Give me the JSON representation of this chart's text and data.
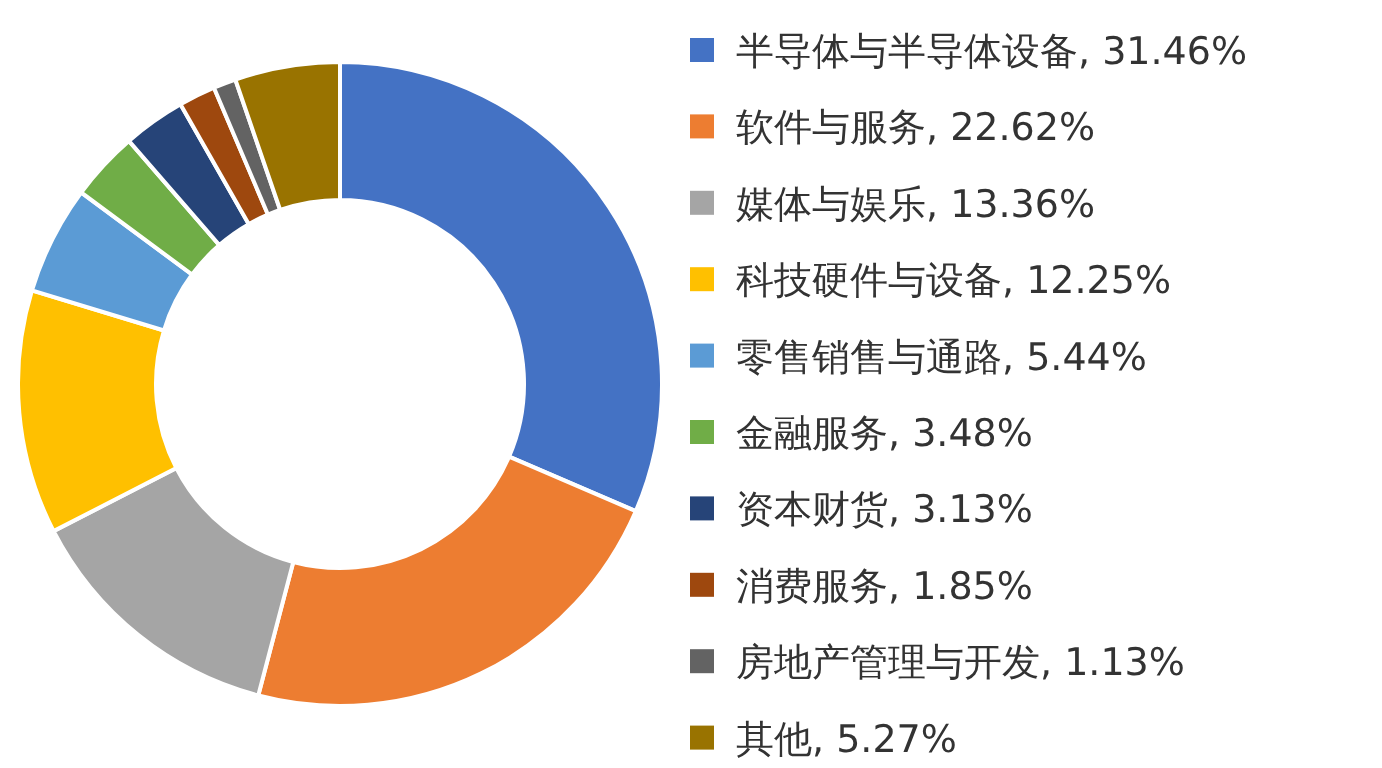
{
  "chart_data": {
    "type": "donut",
    "categories": [
      "半导体与半导体设备",
      "软件与服务",
      "媒体与娱乐",
      "科技硬件与设备",
      "零售销售与通路",
      "金融服务",
      "资本财货",
      "消费服务",
      "房地产管理与开发",
      "其他"
    ],
    "values": [
      31.46,
      22.62,
      13.36,
      12.25,
      5.44,
      3.48,
      3.13,
      1.85,
      1.13,
      5.27
    ],
    "value_labels": [
      "31.46%",
      "22.62%",
      "13.36%",
      "12.25%",
      "5.44%",
      "3.48%",
      "3.13%",
      "1.85%",
      "1.13%",
      "5.27%"
    ],
    "colors": [
      "#4472c4",
      "#ed7d31",
      "#a5a5a5",
      "#ffc000",
      "#5b9bd5",
      "#70ad47",
      "#264478",
      "#9e480e",
      "#636363",
      "#997300"
    ],
    "legend": "right"
  }
}
